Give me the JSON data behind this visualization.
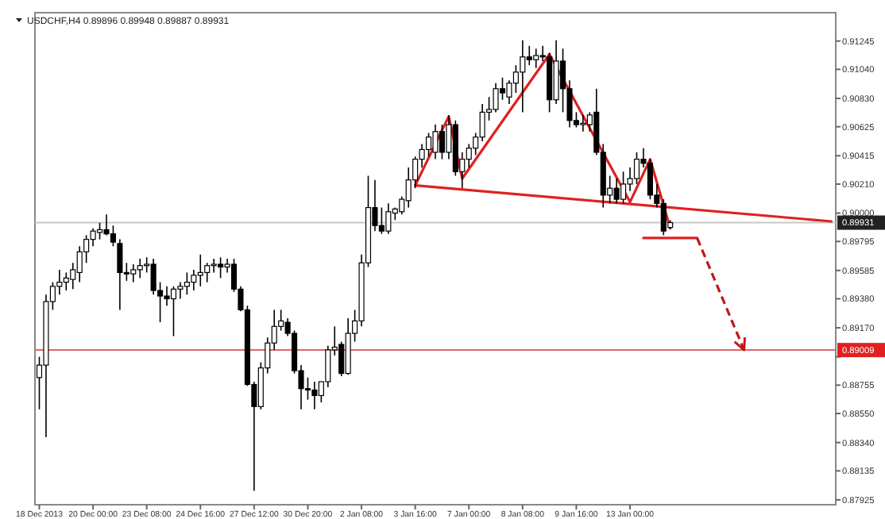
{
  "chart_data": {
    "type": "candlestick",
    "title": "USDCHF,H4  0.89896 0.89948 0.89887 0.89931",
    "categories": [
      "18 Dec 2013",
      null,
      null,
      null,
      null,
      null,
      null,
      null,
      "20 Dec 00:00",
      null,
      null,
      null,
      null,
      null,
      null,
      null,
      "23 Dec 08:00",
      null,
      null,
      null,
      null,
      null,
      null,
      null,
      "24 Dec 16:00",
      null,
      null,
      null,
      null,
      null,
      null,
      null,
      "27 Dec 12:00",
      null,
      null,
      null,
      null,
      null,
      null,
      null,
      "30 Dec 20:00",
      null,
      null,
      null,
      null,
      null,
      null,
      null,
      "2 Jan 08:00",
      null,
      null,
      null,
      null,
      null,
      null,
      null,
      "3 Jan 16:00",
      null,
      null,
      null,
      null,
      null,
      null,
      null,
      "7 Jan 00:00",
      null,
      null,
      null,
      null,
      null,
      null,
      null,
      "8 Jan 08:00",
      null,
      null,
      null,
      null,
      null,
      null,
      null,
      "9 Jan 16:00",
      null,
      null,
      null,
      null,
      null,
      null,
      null,
      "13 Jan 00:00",
      null,
      null,
      null,
      null,
      null,
      null,
      null,
      null,
      null,
      null,
      null,
      null,
      null,
      null,
      null,
      null,
      null,
      null,
      null,
      null,
      null,
      null,
      null,
      null,
      null,
      null,
      null,
      null,
      null,
      null
    ],
    "ohlc": [
      [
        0.8881,
        0.8896,
        0.8858,
        0.889
      ],
      [
        0.889,
        0.8941,
        0.8838,
        0.8936
      ],
      [
        0.8936,
        0.895,
        0.893,
        0.8947
      ],
      [
        0.8947,
        0.8959,
        0.8941,
        0.895
      ],
      [
        0.895,
        0.8957,
        0.8944,
        0.8953
      ],
      [
        0.8952,
        0.8964,
        0.8945,
        0.8959
      ],
      [
        0.8957,
        0.8976,
        0.895,
        0.8972
      ],
      [
        0.8972,
        0.8984,
        0.8964,
        0.8981
      ],
      [
        0.8981,
        0.8989,
        0.8976,
        0.8987
      ],
      [
        0.8986,
        0.8993,
        0.8981,
        0.8988
      ],
      [
        0.8988,
        0.8999,
        0.8984,
        0.8985
      ],
      [
        0.8985,
        0.8991,
        0.8976,
        0.8979
      ],
      [
        0.8978,
        0.8981,
        0.893,
        0.8957
      ],
      [
        0.8957,
        0.8964,
        0.8951,
        0.8956
      ],
      [
        0.8956,
        0.8963,
        0.895,
        0.8959
      ],
      [
        0.8959,
        0.8967,
        0.8953,
        0.8962
      ],
      [
        0.8962,
        0.8968,
        0.8957,
        0.8963
      ],
      [
        0.8963,
        0.8967,
        0.8941,
        0.8944
      ],
      [
        0.8944,
        0.895,
        0.8921,
        0.894
      ],
      [
        0.894,
        0.8947,
        0.8933,
        0.8938
      ],
      [
        0.8938,
        0.8947,
        0.8911,
        0.8945
      ],
      [
        0.8945,
        0.895,
        0.8938,
        0.8947
      ],
      [
        0.8947,
        0.8957,
        0.8941,
        0.895
      ],
      [
        0.895,
        0.8959,
        0.8944,
        0.8955
      ],
      [
        0.8955,
        0.897,
        0.8947,
        0.8957
      ],
      [
        0.8957,
        0.8964,
        0.895,
        0.8962
      ],
      [
        0.8962,
        0.8967,
        0.8957,
        0.8963
      ],
      [
        0.8963,
        0.8968,
        0.8953,
        0.8961
      ],
      [
        0.8961,
        0.8967,
        0.8957,
        0.8963
      ],
      [
        0.8963,
        0.8967,
        0.8943,
        0.8945
      ],
      [
        0.8945,
        0.8947,
        0.8929,
        0.893
      ],
      [
        0.893,
        0.8933,
        0.8875,
        0.8876
      ],
      [
        0.8876,
        0.8878,
        0.8799,
        0.886
      ],
      [
        0.886,
        0.8892,
        0.8858,
        0.8888
      ],
      [
        0.8888,
        0.891,
        0.8884,
        0.8906
      ],
      [
        0.8906,
        0.893,
        0.8901,
        0.8918
      ],
      [
        0.8918,
        0.893,
        0.8915,
        0.8922
      ],
      [
        0.8921,
        0.8924,
        0.8911,
        0.8913
      ],
      [
        0.8913,
        0.8915,
        0.8884,
        0.8886
      ],
      [
        0.8886,
        0.889,
        0.8858,
        0.8873
      ],
      [
        0.8873,
        0.8881,
        0.8865,
        0.8872
      ],
      [
        0.8872,
        0.8878,
        0.8858,
        0.8868
      ],
      [
        0.8868,
        0.8878,
        0.8863,
        0.8878
      ],
      [
        0.8878,
        0.8904,
        0.8874,
        0.8901
      ],
      [
        0.8901,
        0.8918,
        0.8897,
        0.8903
      ],
      [
        0.8905,
        0.8907,
        0.8882,
        0.8884
      ],
      [
        0.8884,
        0.8924,
        0.8883,
        0.8913
      ],
      [
        0.8913,
        0.893,
        0.8907,
        0.8922
      ],
      [
        0.8922,
        0.897,
        0.8918,
        0.8964
      ],
      [
        0.8964,
        0.9027,
        0.8961,
        0.9004
      ],
      [
        0.9004,
        0.9024,
        0.8987,
        0.8991
      ],
      [
        0.8991,
        0.9004,
        0.8985,
        0.8987
      ],
      [
        0.8987,
        0.9007,
        0.8985,
        0.9001
      ],
      [
        0.9,
        0.9004,
        0.8995,
        0.9003
      ],
      [
        0.9001,
        0.9012,
        0.8999,
        0.901
      ],
      [
        0.9009,
        0.9033,
        0.9004,
        0.9024
      ],
      [
        0.9024,
        0.9041,
        0.9018,
        0.9039
      ],
      [
        0.9039,
        0.905,
        0.9033,
        0.9046
      ],
      [
        0.9046,
        0.9058,
        0.9041,
        0.9055
      ],
      [
        0.9044,
        0.9064,
        0.9039,
        0.9059
      ],
      [
        0.9059,
        0.9064,
        0.9039,
        0.9044
      ],
      [
        0.9044,
        0.9071,
        0.9039,
        0.9064
      ],
      [
        0.9064,
        0.9067,
        0.9027,
        0.903
      ],
      [
        0.903,
        0.9044,
        0.9018,
        0.9039
      ],
      [
        0.9039,
        0.905,
        0.9033,
        0.9047
      ],
      [
        0.9047,
        0.9058,
        0.9042,
        0.9055
      ],
      [
        0.9055,
        0.9079,
        0.9052,
        0.9073
      ],
      [
        0.9073,
        0.9084,
        0.9067,
        0.9075
      ],
      [
        0.9075,
        0.9094,
        0.9073,
        0.909
      ],
      [
        0.909,
        0.9098,
        0.9082,
        0.9087
      ],
      [
        0.9084,
        0.9096,
        0.9079,
        0.9094
      ],
      [
        0.9094,
        0.9107,
        0.9087,
        0.9102
      ],
      [
        0.9102,
        0.9125,
        0.9073,
        0.9113
      ],
      [
        0.9113,
        0.9121,
        0.9107,
        0.9111
      ],
      [
        0.9111,
        0.9119,
        0.9105,
        0.9114
      ],
      [
        0.9114,
        0.9121,
        0.911,
        0.9113
      ],
      [
        0.9113,
        0.9116,
        0.9073,
        0.9082
      ],
      [
        0.9082,
        0.9125,
        0.9079,
        0.911
      ],
      [
        0.911,
        0.9119,
        0.9073,
        0.909
      ],
      [
        0.909,
        0.9096,
        0.9062,
        0.9067
      ],
      [
        0.9067,
        0.9073,
        0.9062,
        0.9064
      ],
      [
        0.9064,
        0.9071,
        0.9059,
        0.9065
      ],
      [
        0.9064,
        0.9073,
        0.9059,
        0.9071
      ],
      [
        0.9073,
        0.909,
        0.9042,
        0.9044
      ],
      [
        0.9044,
        0.905,
        0.9004,
        0.9013
      ],
      [
        0.9013,
        0.9027,
        0.9007,
        0.9018
      ],
      [
        0.9018,
        0.9025,
        0.9007,
        0.901
      ],
      [
        0.901,
        0.903,
        0.9007,
        0.9021
      ],
      [
        0.9021,
        0.9033,
        0.9016,
        0.9025
      ],
      [
        0.9025,
        0.9044,
        0.9021,
        0.9039
      ],
      [
        0.9039,
        0.9047,
        0.9033,
        0.9036
      ],
      [
        0.9036,
        0.9039,
        0.901,
        0.9013
      ],
      [
        0.9013,
        0.9021,
        0.9004,
        0.9007
      ],
      [
        0.9007,
        0.901,
        0.8984,
        0.8987
      ],
      [
        0.89896,
        0.89948,
        0.89887,
        0.89931
      ],
      null,
      null,
      null,
      null,
      null,
      null,
      null,
      null,
      null,
      null,
      null,
      null,
      null,
      null,
      null,
      null,
      null,
      null,
      null,
      null,
      null,
      null,
      null,
      null
    ],
    "series": [
      {
        "type": "line",
        "color": "#e02020",
        "values": [
          null,
          null,
          null,
          null,
          null,
          null,
          null,
          null,
          null,
          null,
          null,
          null,
          null,
          null,
          null,
          null,
          null,
          null,
          null,
          null,
          null,
          null,
          null,
          null,
          null,
          null,
          null,
          null,
          null,
          null,
          null,
          null,
          null,
          null,
          null,
          null,
          null,
          null,
          null,
          null,
          null,
          null,
          null,
          null,
          null,
          null,
          null,
          null,
          null,
          null,
          null,
          null,
          null,
          null,
          null,
          null,
          0.902,
          null,
          null,
          null,
          null,
          0.907,
          null,
          0.9025,
          null,
          null,
          null,
          null,
          null,
          null,
          null,
          null,
          null,
          null,
          null,
          null,
          0.9115,
          null,
          null,
          null,
          null,
          null,
          null,
          null,
          null,
          null,
          null,
          null,
          0.9008,
          null,
          null,
          0.9039,
          null,
          null,
          0.8989,
          null,
          null,
          null,
          null,
          null,
          null,
          null,
          null,
          null,
          null,
          null,
          null,
          null,
          null,
          null,
          null,
          null,
          null,
          null,
          null,
          null,
          null,
          null,
          null
        ]
      },
      {
        "type": "line",
        "color": "#e02020",
        "values": [
          null,
          null,
          null,
          null,
          null,
          null,
          null,
          null,
          null,
          null,
          null,
          null,
          null,
          null,
          null,
          null,
          null,
          null,
          null,
          null,
          null,
          null,
          null,
          null,
          null,
          null,
          null,
          null,
          null,
          null,
          null,
          null,
          null,
          null,
          null,
          null,
          null,
          null,
          null,
          null,
          null,
          null,
          null,
          null,
          null,
          null,
          null,
          null,
          null,
          null,
          null,
          null,
          null,
          null,
          null,
          null,
          0.902,
          null,
          null,
          null,
          null,
          null,
          null,
          null,
          null,
          null,
          null,
          null,
          null,
          null,
          null,
          null,
          null,
          null,
          null,
          null,
          null,
          null,
          null,
          null,
          null,
          null,
          null,
          null,
          null,
          null,
          null,
          null,
          null,
          null,
          null,
          null,
          null,
          null,
          null,
          null,
          null,
          null,
          null,
          null,
          null,
          null,
          null,
          null,
          null,
          null,
          null,
          null,
          null,
          null,
          null,
          null,
          null,
          null,
          null,
          null,
          null,
          null,
          0.8994
        ]
      },
      {
        "type": "line",
        "color": "#e02020",
        "values": [
          null,
          null,
          null,
          null,
          null,
          null,
          null,
          null,
          null,
          null,
          null,
          null,
          null,
          null,
          null,
          null,
          null,
          null,
          null,
          null,
          null,
          null,
          null,
          null,
          null,
          null,
          null,
          null,
          null,
          null,
          null,
          null,
          null,
          null,
          null,
          null,
          null,
          null,
          null,
          null,
          null,
          null,
          null,
          null,
          null,
          null,
          null,
          null,
          null,
          null,
          null,
          null,
          null,
          null,
          null,
          null,
          null,
          null,
          null,
          null,
          null,
          null,
          null,
          null,
          null,
          null,
          null,
          null,
          null,
          null,
          null,
          null,
          null,
          null,
          null,
          null,
          null,
          null,
          null,
          null,
          null,
          null,
          null,
          null,
          null,
          null,
          null,
          null,
          null,
          null,
          0.8982,
          null,
          null,
          null,
          null,
          null,
          null,
          null,
          0.8982,
          null,
          null,
          null,
          null,
          null,
          null,
          null,
          null,
          null,
          null,
          null,
          null,
          null,
          null,
          null,
          null,
          null,
          null,
          null,
          null
        ]
      }
    ],
    "ylim": [
      0.8789,
      0.9145
    ],
    "yticks": [
      {
        "value": 0.91245,
        "label": "0.91245"
      },
      {
        "value": 0.9104,
        "label": "0.91040"
      },
      {
        "value": 0.9083,
        "label": "0.90830"
      },
      {
        "value": 0.90625,
        "label": "0.90625"
      },
      {
        "value": 0.90415,
        "label": "0.90415"
      },
      {
        "value": 0.9021,
        "label": "0.90210"
      },
      {
        "value": 0.9,
        "label": "0.90000"
      },
      {
        "value": 0.89795,
        "label": "0.89795"
      },
      {
        "value": 0.89585,
        "label": "0.89585"
      },
      {
        "value": 0.8938,
        "label": "0.89380"
      },
      {
        "value": 0.8917,
        "label": "0.89170"
      },
      {
        "value": 0.8896,
        "label": null
      },
      {
        "value": 0.88755,
        "label": "0.88755"
      },
      {
        "value": 0.8855,
        "label": "0.88550"
      },
      {
        "value": 0.8834,
        "label": "0.88340"
      },
      {
        "value": 0.88135,
        "label": "0.88135"
      },
      {
        "value": 0.87925,
        "label": "0.87925"
      }
    ],
    "ref_lines": [
      {
        "axis": "y",
        "value": 0.89931,
        "label": "0.89931",
        "color": "#c8c8c8"
      },
      {
        "axis": "y",
        "value": 0.89009,
        "label": "0.89009",
        "color": "#e06666"
      }
    ]
  }
}
